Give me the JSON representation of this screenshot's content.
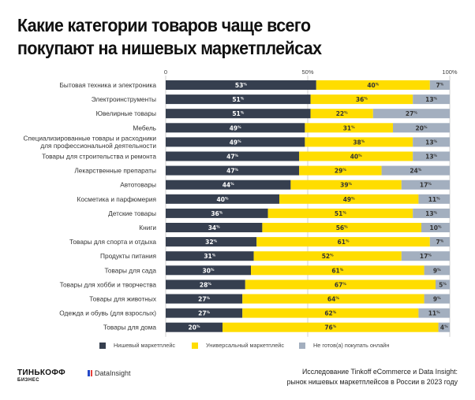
{
  "title_line1": "Какие категории товаров чаще всего",
  "title_line2": "покупают на нишевых маркетплейсах",
  "colors": {
    "niche": "#363f4f",
    "universal": "#ffdd00",
    "not_ready": "#a3afbf",
    "niche_text": "#ffffff",
    "other_text": "#333333"
  },
  "chart_data": {
    "type": "bar",
    "orientation": "horizontal-stacked-100",
    "title": "Какие категории товаров чаще всего покупают на нишевых маркетплейсах",
    "xlabel": "",
    "ylabel": "",
    "xlim": [
      0,
      100
    ],
    "xticks": [
      {
        "value": 0,
        "label": "0"
      },
      {
        "value": 50,
        "label": "50%"
      },
      {
        "value": 100,
        "label": "100%"
      }
    ],
    "grid": true,
    "legend_position": "bottom",
    "categories": [
      "Бытовая техника и электроника",
      "Электроинструменты",
      "Ювелирные товары",
      "Мебель",
      "Специализированные товары и расходники|для профессиональной деятельности",
      "Товары для строительства и ремонта",
      "Лекарственные препараты",
      "Автотовары",
      "Косметика и парфюмерия",
      "Детские товары",
      "Книги",
      "Товары для спорта и отдыха",
      "Продукты питания",
      "Товары для сада",
      "Товары для хобби и творчества",
      "Товары для животных",
      "Одежда и обувь (для взрослых)",
      "Товары для дома"
    ],
    "series": [
      {
        "name": "Нишевый маркетплейс",
        "values": [
          53,
          51,
          51,
          49,
          49,
          47,
          47,
          44,
          40,
          36,
          34,
          32,
          31,
          30,
          28,
          27,
          27,
          20
        ]
      },
      {
        "name": "Универсальный маркетплейс",
        "values": [
          40,
          36,
          22,
          31,
          38,
          40,
          29,
          39,
          49,
          51,
          56,
          61,
          52,
          61,
          67,
          64,
          62,
          76
        ]
      },
      {
        "name": "Не готов(а) покупать онлайн",
        "values": [
          7,
          13,
          27,
          20,
          13,
          13,
          24,
          17,
          11,
          13,
          10,
          7,
          17,
          9,
          5,
          9,
          11,
          4
        ]
      }
    ],
    "value_suffix": "%"
  },
  "legend": [
    {
      "label": "Нишевый маркетплейс"
    },
    {
      "label": "Универсальный маркетплейс"
    },
    {
      "label": "Не готов(а) покупать онлайн"
    }
  ],
  "footer": {
    "brand_name": "ТИНЬКОФФ",
    "brand_sub": "БИЗНЕС",
    "partner": "DataInsight",
    "source_line1": "Исследование Tinkoff eCommerce и Data Insight:",
    "source_line2": "рынок нишевых маркетплейсов в России в 2023 году"
  }
}
